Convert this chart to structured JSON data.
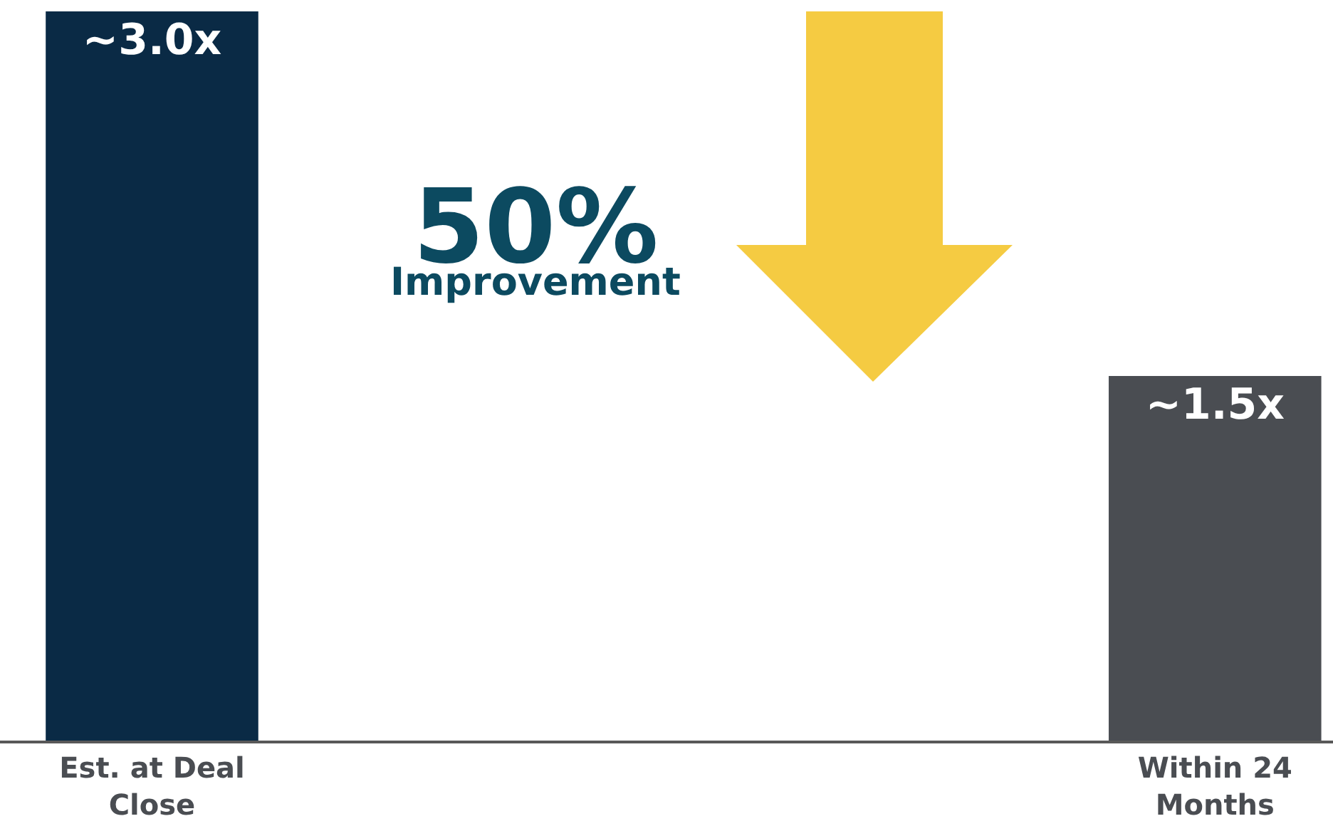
{
  "chart_data": {
    "type": "bar",
    "categories": [
      "Est. at Deal Close",
      "Within 24 Months"
    ],
    "values": [
      3.0,
      1.5
    ],
    "colors": [
      "#0a2a45",
      "#4a4d52"
    ],
    "value_labels": [
      "~3.0x",
      "~1.5x"
    ],
    "annotations": [
      "50%",
      "Improvement"
    ],
    "legend": false
  }
}
